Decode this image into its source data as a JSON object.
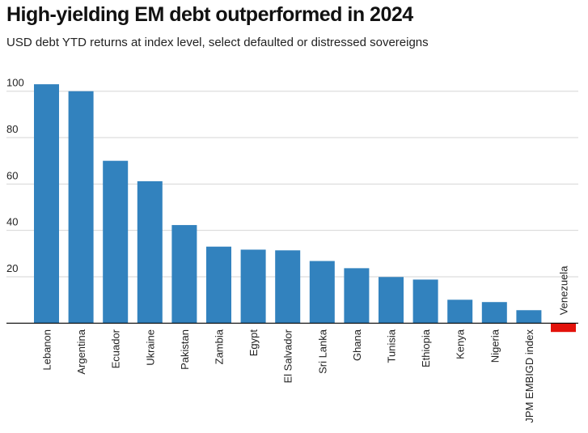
{
  "chart_data": {
    "type": "bar",
    "title": "High-yielding EM debt outperformed in 2024",
    "subtitle": "USD debt YTD returns at index level, select defaulted or distressed sovereigns",
    "xlabel": "",
    "ylabel": "",
    "ylim": [
      -4,
      105
    ],
    "yticks": [
      20,
      40,
      60,
      80,
      100
    ],
    "grid": true,
    "categories": [
      "Lebanon",
      "Argentina",
      "Ecuador",
      "Ukraine",
      "Pakistan",
      "Zambia",
      "Egypt",
      "El Salvador",
      "Sri Lanka",
      "Ghana",
      "Tunisia",
      "Ethiopia",
      "Kenya",
      "Nigeria",
      "JPM EMBIGD index",
      "Venezuela"
    ],
    "values": [
      103,
      100,
      70,
      61.2,
      42.3,
      33,
      31.7,
      31.4,
      26.8,
      23.7,
      19.9,
      18.8,
      10.1,
      9.1,
      5.6,
      -3.8
    ],
    "colors": {
      "positive": "#3282be",
      "negative": "#e3120b",
      "grid": "#d6d6d6",
      "axis": "#000000"
    }
  }
}
